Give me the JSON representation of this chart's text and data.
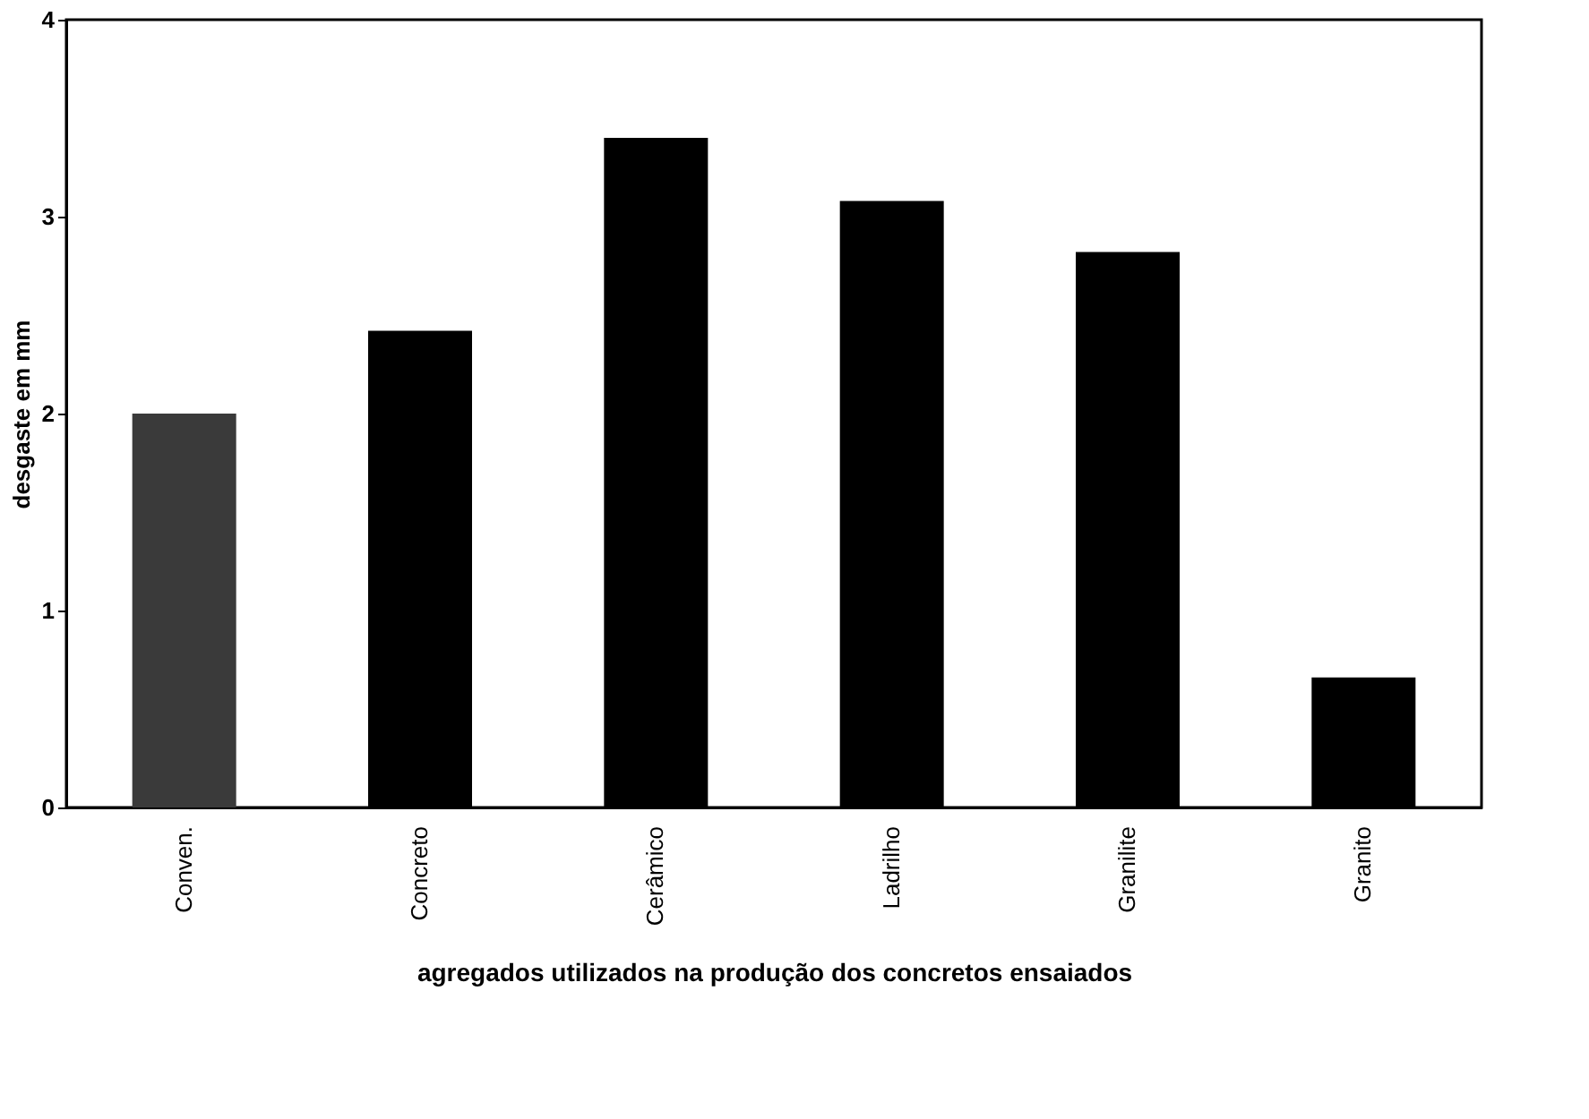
{
  "chart_data": {
    "type": "bar",
    "xlabel": "agregados utilizados na produção dos concretos ensaiados",
    "ylabel": "desgaste em mm",
    "categories": [
      "Conven.",
      "Concreto",
      "Cerâmico",
      "Ladrilho",
      "Granilite",
      "Granito"
    ],
    "values": [
      2.0,
      2.42,
      3.4,
      3.08,
      2.82,
      0.66
    ],
    "colors": [
      "#3a3a3a",
      "#000000",
      "#000000",
      "#000000",
      "#000000",
      "#000000"
    ],
    "ylim": [
      0,
      4
    ],
    "yticks": [
      0,
      1,
      2,
      3,
      4
    ],
    "grid": false
  }
}
